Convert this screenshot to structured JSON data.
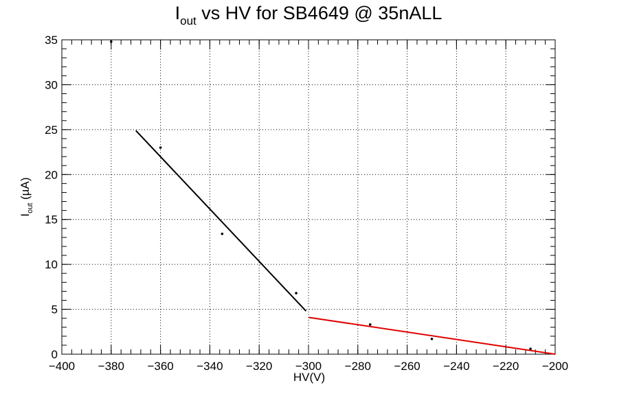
{
  "chart_data": {
    "type": "scatter",
    "title": {
      "main": "I",
      "sub": "out",
      "rest": " vs HV for SB4649 @ 35nALL"
    },
    "xlabel": "HV(V)",
    "ylabel": {
      "main": "I",
      "sub": "out",
      "rest": " (µA)"
    },
    "xlim": [
      -400,
      -200
    ],
    "ylim": [
      0,
      35
    ],
    "x_ticks": [
      -400,
      -380,
      -360,
      -340,
      -320,
      -300,
      -280,
      -260,
      -240,
      -220,
      -200
    ],
    "x_tick_labels": [
      "−400",
      "−380",
      "−360",
      "−340",
      "−320",
      "−300",
      "−280",
      "−260",
      "−240",
      "−220",
      "−200"
    ],
    "y_ticks": [
      0,
      5,
      10,
      15,
      20,
      25,
      30,
      35
    ],
    "y_tick_labels": [
      "0",
      "5",
      "10",
      "15",
      "20",
      "25",
      "30",
      "35"
    ],
    "grid": true,
    "points": [
      {
        "x": -380,
        "y": 34.8
      },
      {
        "x": -360,
        "y": 23.0
      },
      {
        "x": -335,
        "y": 13.4
      },
      {
        "x": -305,
        "y": 6.8
      },
      {
        "x": -275,
        "y": 3.3
      },
      {
        "x": -250,
        "y": 1.7
      },
      {
        "x": -210,
        "y": 0.6
      }
    ],
    "fit_lines": [
      {
        "x": [
          -370,
          -301
        ],
        "y": [
          24.9,
          4.8
        ],
        "color": "#000000"
      },
      {
        "x": [
          -300,
          -200
        ],
        "y": [
          4.1,
          0.0
        ],
        "color": "#e00000"
      }
    ],
    "point_color": "#000000"
  }
}
